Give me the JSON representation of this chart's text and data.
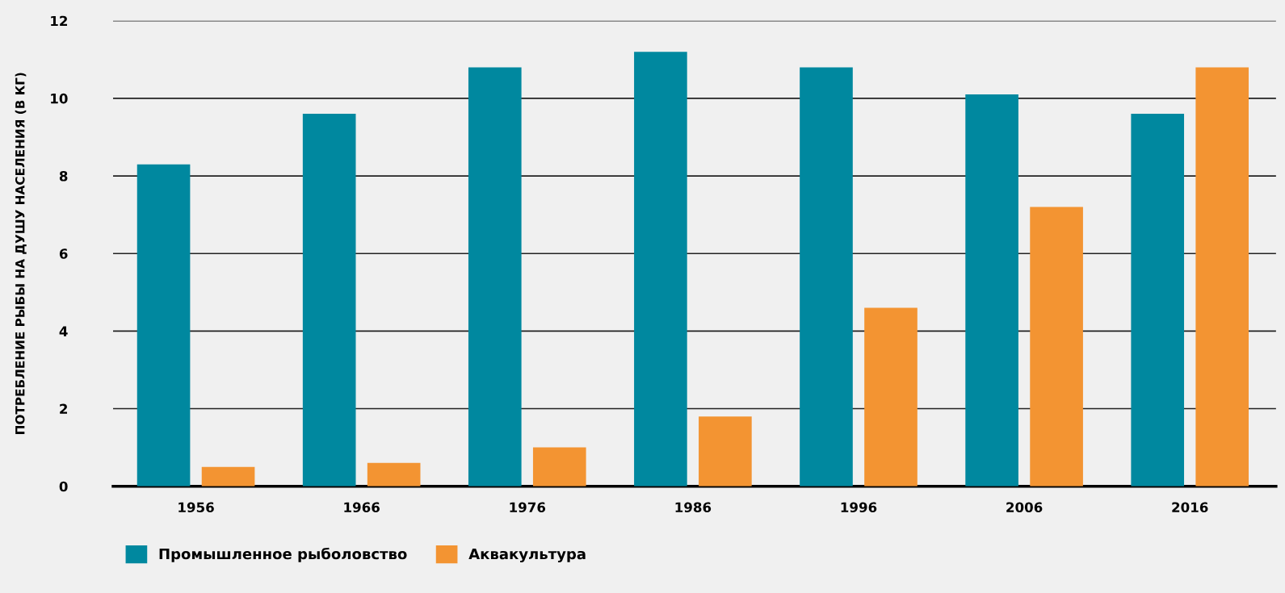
{
  "chart_data": {
    "type": "bar",
    "ylabel": "ПОТРЕБЛЕНИЕ РЫБЫ НА ДУШУ НАСЕЛЕНИЯ (В КГ)",
    "categories": [
      "1956",
      "1966",
      "1976",
      "1986",
      "1996",
      "2006",
      "2016"
    ],
    "series": [
      {
        "name": "Промышленное рыболовство",
        "color": "#00889f",
        "values": [
          8.3,
          9.6,
          10.8,
          11.2,
          10.8,
          10.1,
          9.6
        ]
      },
      {
        "name": "Аквакультура",
        "color": "#f39432",
        "values": [
          0.5,
          0.6,
          1.0,
          1.8,
          4.6,
          7.2,
          10.8
        ]
      }
    ],
    "ylim": [
      0,
      12
    ],
    "yticks": [
      0,
      2,
      4,
      6,
      8,
      10,
      12
    ],
    "grid": "y",
    "legend": "bottom left"
  }
}
